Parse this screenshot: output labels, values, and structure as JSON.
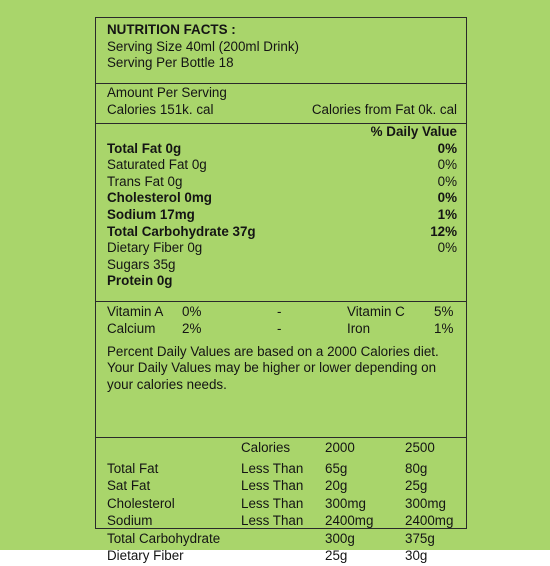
{
  "header": {
    "title": "NUTRITION FACTS :",
    "serving_size": "Serving Size 40ml (200ml Drink)",
    "servings_per_bottle": "Serving Per Bottle 18"
  },
  "amount": {
    "label": "Amount Per Serving",
    "calories": "Calories 151k. cal",
    "calories_from_fat": "Calories from Fat 0k. cal"
  },
  "daily_value_heading": "% Daily Value",
  "nutrients": [
    {
      "name": "Total Fat 0g",
      "dv": "0%",
      "bold": true
    },
    {
      "name": "Saturated Fat 0g",
      "dv": "0%",
      "bold": false
    },
    {
      "name": "Trans Fat 0g",
      "dv": "0%",
      "bold": false
    },
    {
      "name": "Cholesterol 0mg",
      "dv": "0%",
      "bold": true
    },
    {
      "name": "Sodium 17mg",
      "dv": "1%",
      "bold": true
    },
    {
      "name": "Total Carbohydrate 37g",
      "dv": "12%",
      "bold": true
    },
    {
      "name": "Dietary Fiber 0g",
      "dv": "0%",
      "bold": false
    },
    {
      "name": "Sugars 35g",
      "dv": "",
      "bold": false
    },
    {
      "name": "Protein 0g",
      "dv": "",
      "bold": true
    }
  ],
  "vitamins": [
    {
      "left_name": "Vitamin A",
      "left_value": "0%",
      "dash": "-",
      "right_name": "Vitamin C",
      "right_value": "5%"
    },
    {
      "left_name": "Calcium",
      "left_value": "2%",
      "dash": "-",
      "right_name": "Iron",
      "right_value": "1%"
    }
  ],
  "footnote": {
    "line1": "Percent Daily Values are based on a 2000 Calories diet.",
    "line2": "Your Daily Values may be higher or lower depending on",
    "line3": "your calories needs."
  },
  "reference_table": {
    "header": {
      "label": "",
      "limit": "Calories",
      "c2000": "2000",
      "c2500": "2500"
    },
    "rows": [
      {
        "label": "Total Fat",
        "limit": "Less Than",
        "c2000": "65g",
        "c2500": "80g"
      },
      {
        "label": "Sat Fat",
        "limit": "Less Than",
        "c2000": "20g",
        "c2500": "25g"
      },
      {
        "label": "Cholesterol",
        "limit": "Less Than",
        "c2000": "300mg",
        "c2500": "300mg"
      },
      {
        "label": "Sodium",
        "limit": "Less Than",
        "c2000": "2400mg",
        "c2500": "2400mg"
      },
      {
        "label": "Total Carbohydrate",
        "limit": "",
        "c2000": "300g",
        "c2500": "375g"
      },
      {
        "label": "Dietary Fiber",
        "limit": "",
        "c2000": "25g",
        "c2500": "30g"
      }
    ]
  },
  "colors": {
    "background": "#a9d56b",
    "text": "#141414",
    "border": "#2a2a2a"
  }
}
